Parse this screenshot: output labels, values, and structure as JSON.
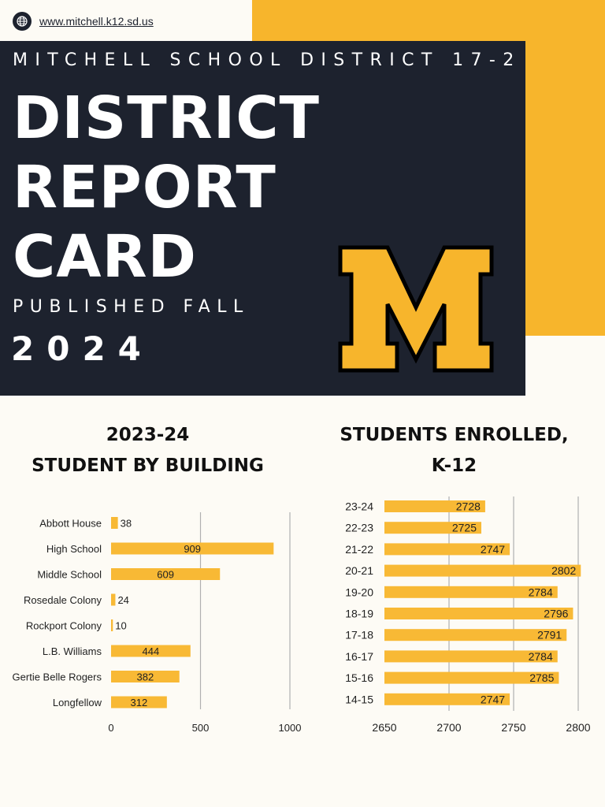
{
  "header": {
    "url": "www.mitchell.k12.sd.us",
    "district_name": "MITCHELL SCHOOL DISTRICT 17-2",
    "title_lines": [
      "DISTRICT",
      "REPORT",
      "CARD"
    ],
    "published": "PUBLISHED FALL",
    "year": "2024",
    "logo_letter": "M"
  },
  "colors": {
    "gold": "#f7b52c",
    "navy": "#1d222e",
    "bar": "#f8b935",
    "background": "#fdfbf5"
  },
  "icons": {
    "url_icon": "globe-icon"
  },
  "chart_titles": {
    "building": [
      "2023-24",
      "STUDENT BY BUILDING"
    ],
    "enrolled": [
      "STUDENTS ENROLLED,",
      "K-12"
    ]
  },
  "chart_data": [
    {
      "type": "bar",
      "orientation": "horizontal",
      "title": "2023-24 STUDENT BY BUILDING",
      "categories": [
        "Abbott House",
        "High School",
        "Middle School",
        "Rosedale Colony",
        "Rockport Colony",
        "L.B. Williams",
        "Gertie Belle Rogers",
        "Longfellow"
      ],
      "values": [
        38,
        909,
        609,
        24,
        10,
        444,
        382,
        312
      ],
      "xlim": [
        0,
        1000
      ],
      "xticks": [
        "0",
        "500",
        "1000"
      ],
      "grid": true,
      "data_labels": true
    },
    {
      "type": "bar",
      "orientation": "horizontal",
      "title": "STUDENTS ENROLLED, K-12",
      "categories": [
        "23-24",
        "22-23",
        "21-22",
        "20-21",
        "19-20",
        "18-19",
        "17-18",
        "16-17",
        "15-16",
        "14-15"
      ],
      "values": [
        2728,
        2725,
        2747,
        2802,
        2784,
        2796,
        2791,
        2784,
        2785,
        2747
      ],
      "xlim": [
        2650,
        2800
      ],
      "xticks": [
        "2650",
        "2700",
        "2750",
        "2800"
      ],
      "grid": true,
      "data_labels": true
    }
  ]
}
